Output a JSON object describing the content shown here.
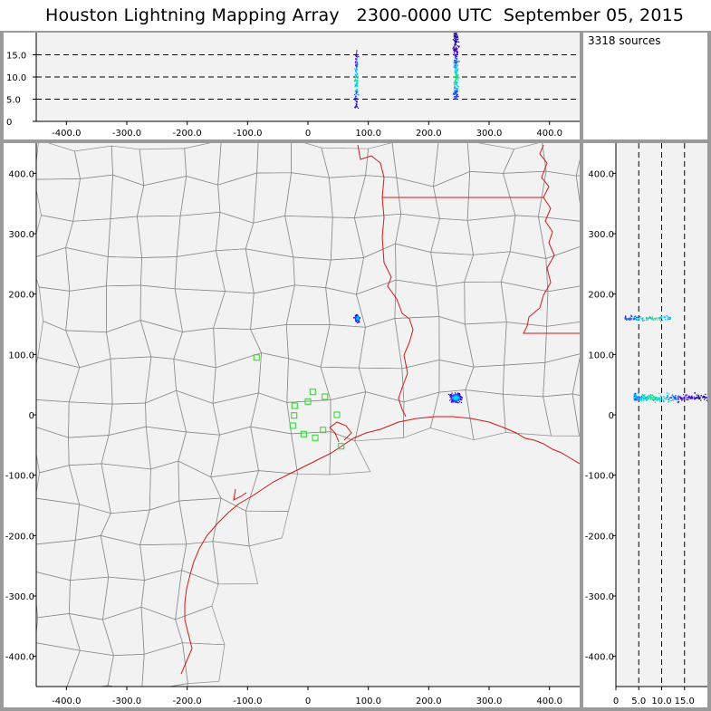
{
  "title": {
    "app": "Houston Lightning Mapping Array",
    "time_range": "2300-0000 UTC",
    "date": "September 05, 2015"
  },
  "sources_count": "3318 sources",
  "colors": {
    "frame": "#9a9a9a",
    "plot_bg": "#f2f2f2",
    "county_line": "#8a8a8a",
    "coast_state_line": "#d11a1a",
    "station_marker": "#33dd33"
  },
  "chart_data": [
    {
      "type": "scatter",
      "panel": "altitude-vs-east-west",
      "x_axis": {
        "range": [
          -450,
          450
        ],
        "ticks": [
          "-400.0",
          "-300.0",
          "-200.0",
          "-100.0",
          "0",
          "100.0",
          "200.0",
          "300.0",
          "400.0"
        ]
      },
      "y_axis": {
        "range": [
          0,
          20
        ],
        "ticks": [
          "0",
          "5.0",
          "10.0",
          "15.0"
        ],
        "dashed_gridlines": [
          5,
          10,
          15
        ]
      },
      "clusters": [
        {
          "x": 80,
          "z_min": 3,
          "z_max": 16,
          "core_z": 9.5
        },
        {
          "x": 245,
          "z_min": 5,
          "z_max": 20,
          "core_z": 10
        }
      ]
    },
    {
      "type": "scatter",
      "panel": "plan-view-map",
      "x_axis": {
        "range": [
          -450,
          450
        ],
        "ticks": [
          "-400.0",
          "-300.0",
          "-200.0",
          "-100.0",
          "0",
          "100.0",
          "200.0",
          "300.0",
          "400.0"
        ]
      },
      "y_axis": {
        "range": [
          -450,
          450
        ],
        "ticks": [
          "-400.0",
          "-300.0",
          "-200.0",
          "-100.0",
          "0",
          "100.0",
          "200.0",
          "300.0",
          "400.0"
        ]
      },
      "storm_clusters": [
        {
          "x": 82,
          "y": 160
        },
        {
          "x": 245,
          "y": 28
        }
      ],
      "stations": [
        {
          "x": -85,
          "y": 95
        },
        {
          "x": -22,
          "y": 15
        },
        {
          "x": -23,
          "y": -1
        },
        {
          "x": -25,
          "y": -18
        },
        {
          "x": -7,
          "y": -32
        },
        {
          "x": 0,
          "y": 22
        },
        {
          "x": 8,
          "y": 38
        },
        {
          "x": 12,
          "y": -38
        },
        {
          "x": 28,
          "y": 30
        },
        {
          "x": 25,
          "y": -25
        },
        {
          "x": 48,
          "y": 0
        },
        {
          "x": 55,
          "y": -52
        }
      ]
    },
    {
      "type": "scatter",
      "panel": "north-south-vs-altitude",
      "x_axis": {
        "range": [
          0,
          20
        ],
        "ticks": [
          "0",
          "5.0",
          "10.0",
          "15.0"
        ],
        "dashed_gridlines": [
          5,
          10,
          15
        ]
      },
      "y_axis": {
        "range": [
          -450,
          450
        ],
        "ticks": [
          "-400.0",
          "-300.0",
          "-200.0",
          "-100.0",
          "0",
          "100.0",
          "200.0",
          "300.0",
          "400.0"
        ]
      },
      "clusters": [
        {
          "y": 160,
          "z_min": 2,
          "z_max": 12
        },
        {
          "y": 28,
          "z_min": 4,
          "z_max": 20
        }
      ]
    }
  ]
}
